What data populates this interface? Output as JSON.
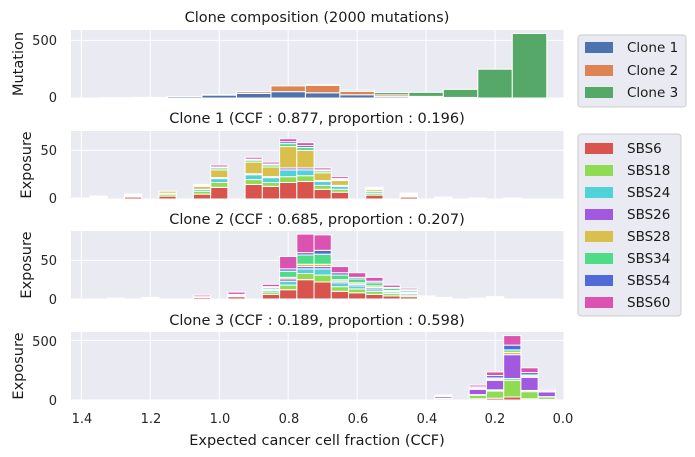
{
  "xlabel": "Expected cancer cell fraction (CCF)",
  "x_ticks": [
    "1.4",
    "1.2",
    "1.0",
    "0.8",
    "0.6",
    "0.4",
    "0.2",
    "0.0"
  ],
  "legend_clones": [
    {
      "label": "Clone 1",
      "color": "#4c72b0"
    },
    {
      "label": "Clone 2",
      "color": "#dd8452"
    },
    {
      "label": "Clone 3",
      "color": "#55a868"
    }
  ],
  "legend_sigs": [
    {
      "label": "SBS6",
      "color": "#d9544d"
    },
    {
      "label": "SBS18",
      "color": "#8fdc53"
    },
    {
      "label": "SBS24",
      "color": "#4fd3d8"
    },
    {
      "label": "SBS26",
      "color": "#a259e0"
    },
    {
      "label": "SBS28",
      "color": "#d9c04c"
    },
    {
      "label": "SBS34",
      "color": "#4fdc86"
    },
    {
      "label": "SBS54",
      "color": "#5169d9"
    },
    {
      "label": "SBS60",
      "color": "#dc52b0"
    }
  ],
  "chart_data": [
    {
      "type": "bar",
      "stacked": true,
      "title": "Clone composition (2000 mutations)",
      "ylabel": "Mutation",
      "xlim": [
        1.43,
        0.0
      ],
      "ylim": [
        0,
        590
      ],
      "y_ticks": [
        "0",
        "500"
      ],
      "x": [
        1.4,
        1.3,
        1.2,
        1.1,
        1.0,
        0.9,
        0.8,
        0.7,
        0.6,
        0.5,
        0.4,
        0.3,
        0.2,
        0.1
      ],
      "series": [
        {
          "name": "Clone 1",
          "values": [
            0,
            2,
            5,
            12,
            25,
            40,
            55,
            45,
            28,
            12,
            4,
            0,
            0,
            0
          ]
        },
        {
          "name": "Clone 2",
          "values": [
            0,
            0,
            0,
            0,
            5,
            15,
            50,
            65,
            30,
            15,
            10,
            5,
            0,
            0
          ]
        },
        {
          "name": "Clone 3",
          "values": [
            0,
            0,
            0,
            0,
            0,
            0,
            0,
            5,
            10,
            20,
            35,
            70,
            250,
            560
          ]
        }
      ]
    },
    {
      "type": "bar",
      "stacked": true,
      "title": "Clone 1 (CCF : 0.877, proportion : 0.196)",
      "ylabel": "Exposure",
      "xlim": [
        1.43,
        0.0
      ],
      "ylim": [
        0,
        70
      ],
      "y_ticks": [
        "0",
        "50"
      ],
      "x": [
        1.4,
        1.35,
        1.25,
        1.15,
        1.05,
        1.0,
        0.9,
        0.85,
        0.8,
        0.75,
        0.7,
        0.65,
        0.55,
        0.45,
        0.35,
        0.25,
        0.15
      ],
      "series": [
        {
          "name": "SBS6",
          "values": [
            1,
            1,
            2,
            3,
            5,
            12,
            15,
            13,
            17,
            18,
            10,
            7,
            4,
            2,
            1,
            1,
            1
          ]
        },
        {
          "name": "SBS18",
          "values": [
            0,
            1,
            1,
            2,
            3,
            5,
            5,
            4,
            6,
            6,
            4,
            3,
            2,
            1,
            1,
            0,
            0
          ]
        },
        {
          "name": "SBS24",
          "values": [
            0,
            1,
            1,
            1,
            2,
            4,
            5,
            5,
            7,
            6,
            4,
            3,
            2,
            1,
            0,
            0,
            0
          ]
        },
        {
          "name": "SBS26",
          "values": [
            0,
            0,
            0,
            0,
            0,
            1,
            1,
            1,
            2,
            2,
            1,
            1,
            0,
            0,
            0,
            0,
            0
          ]
        },
        {
          "name": "SBS28",
          "values": [
            0,
            0,
            1,
            2,
            3,
            8,
            12,
            10,
            22,
            18,
            8,
            5,
            2,
            1,
            0,
            0,
            0
          ]
        },
        {
          "name": "SBS34",
          "values": [
            0,
            0,
            0,
            0,
            1,
            2,
            2,
            2,
            3,
            3,
            2,
            1,
            1,
            0,
            0,
            0,
            0
          ]
        },
        {
          "name": "SBS54",
          "values": [
            0,
            0,
            0,
            0,
            0,
            1,
            1,
            1,
            2,
            2,
            1,
            1,
            0,
            0,
            0,
            0,
            0
          ]
        },
        {
          "name": "SBS60",
          "values": [
            0,
            0,
            0,
            0,
            1,
            2,
            2,
            2,
            3,
            3,
            2,
            2,
            1,
            1,
            0,
            0,
            0
          ]
        }
      ]
    },
    {
      "type": "bar",
      "stacked": true,
      "title": "Clone 2 (CCF : 0.685, proportion : 0.207)",
      "ylabel": "Exposure",
      "xlim": [
        1.43,
        0.0
      ],
      "ylim": [
        0,
        88
      ],
      "y_ticks": [
        "0",
        "50"
      ],
      "x": [
        1.3,
        1.2,
        1.05,
        0.95,
        0.85,
        0.8,
        0.75,
        0.7,
        0.65,
        0.6,
        0.55,
        0.5,
        0.45,
        0.4,
        0.35,
        0.25,
        0.2,
        0.15
      ],
      "series": [
        {
          "name": "SBS6",
          "values": [
            1,
            1,
            2,
            3,
            6,
            12,
            25,
            22,
            10,
            8,
            6,
            4,
            3,
            1,
            1,
            1,
            1,
            0
          ]
        },
        {
          "name": "SBS18",
          "values": [
            0,
            0,
            1,
            1,
            3,
            6,
            8,
            9,
            6,
            5,
            4,
            3,
            2,
            1,
            0,
            0,
            1,
            0
          ]
        },
        {
          "name": "SBS24",
          "values": [
            0,
            0,
            0,
            1,
            2,
            5,
            6,
            8,
            5,
            4,
            3,
            2,
            2,
            0,
            0,
            0,
            1,
            0
          ]
        },
        {
          "name": "SBS26",
          "values": [
            0,
            0,
            0,
            0,
            1,
            3,
            3,
            3,
            2,
            2,
            2,
            1,
            1,
            0,
            0,
            0,
            0,
            0
          ]
        },
        {
          "name": "SBS28",
          "values": [
            0,
            0,
            0,
            0,
            1,
            2,
            3,
            3,
            2,
            2,
            2,
            1,
            1,
            0,
            0,
            0,
            0,
            0
          ]
        },
        {
          "name": "SBS34",
          "values": [
            0,
            0,
            0,
            1,
            2,
            8,
            12,
            13,
            6,
            5,
            4,
            3,
            2,
            1,
            0,
            0,
            0,
            0
          ]
        },
        {
          "name": "SBS54",
          "values": [
            0,
            0,
            0,
            0,
            1,
            3,
            3,
            5,
            3,
            2,
            2,
            1,
            1,
            0,
            0,
            0,
            0,
            0
          ]
        },
        {
          "name": "SBS60",
          "values": [
            0,
            1,
            2,
            3,
            3,
            16,
            24,
            20,
            8,
            6,
            5,
            3,
            2,
            1,
            1,
            0,
            0,
            0
          ]
        }
      ]
    },
    {
      "type": "bar",
      "stacked": true,
      "title": "Clone 3 (CCF : 0.189, proportion : 0.598)",
      "ylabel": "Exposure",
      "xlim": [
        1.43,
        0.0
      ],
      "ylim": [
        0,
        570
      ],
      "y_ticks": [
        "0",
        "500"
      ],
      "x": [
        0.35,
        0.25,
        0.2,
        0.15,
        0.1,
        0.05
      ],
      "series": [
        {
          "name": "SBS6",
          "values": [
            3,
            10,
            15,
            25,
            10,
            5
          ]
        },
        {
          "name": "SBS18",
          "values": [
            10,
            30,
            60,
            140,
            60,
            20
          ]
        },
        {
          "name": "SBS24",
          "values": [
            2,
            5,
            10,
            15,
            10,
            3
          ]
        },
        {
          "name": "SBS26",
          "values": [
            15,
            45,
            80,
            200,
            110,
            40
          ]
        },
        {
          "name": "SBS28",
          "values": [
            2,
            5,
            10,
            20,
            10,
            3
          ]
        },
        {
          "name": "SBS34",
          "values": [
            2,
            5,
            10,
            20,
            10,
            3
          ]
        },
        {
          "name": "SBS54",
          "values": [
            3,
            10,
            20,
            40,
            20,
            5
          ]
        },
        {
          "name": "SBS60",
          "values": [
            5,
            15,
            30,
            80,
            40,
            10
          ]
        }
      ]
    }
  ]
}
